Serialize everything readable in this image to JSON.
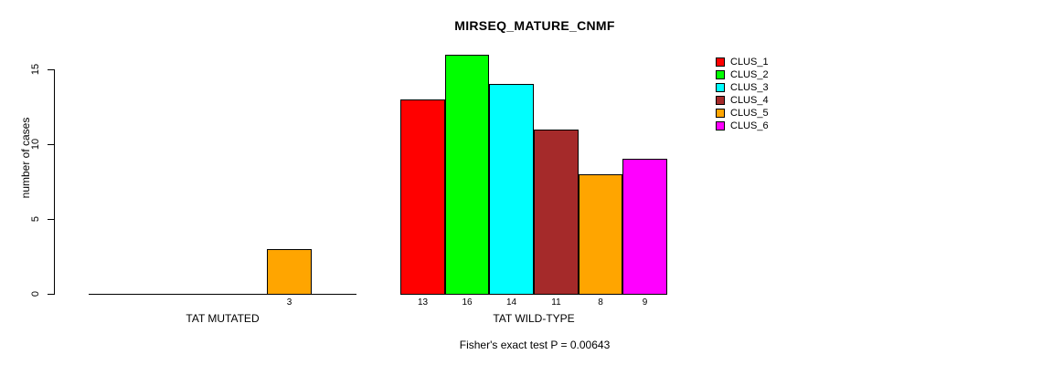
{
  "chart_data": {
    "type": "bar",
    "title": "MIRSEQ_MATURE_CNMF",
    "ylabel": "number of cases",
    "xlabel": "",
    "ylim": [
      0,
      15
    ],
    "yticks": [
      0,
      5,
      10,
      15
    ],
    "grid": false,
    "legend_position": "right",
    "categories": [
      "TAT MUTATED",
      "TAT WILD-TYPE"
    ],
    "series": [
      {
        "name": "CLUS_1",
        "color": "#FF0000",
        "values": [
          0,
          13
        ]
      },
      {
        "name": "CLUS_2",
        "color": "#00FF00",
        "values": [
          0,
          16
        ]
      },
      {
        "name": "CLUS_3",
        "color": "#00FFFF",
        "values": [
          0,
          14
        ]
      },
      {
        "name": "CLUS_4",
        "color": "#A52A2A",
        "values": [
          0,
          11
        ]
      },
      {
        "name": "CLUS_5",
        "color": "#FFA500",
        "values": [
          3,
          8
        ]
      },
      {
        "name": "CLUS_6",
        "color": "#FF00FF",
        "values": [
          0,
          9
        ]
      }
    ],
    "bar_value_labels": {
      "shown_when_positive": true
    },
    "annotation": "Fisher's exact test P = 0.00643"
  },
  "colors": {
    "axis": "#000000",
    "background": "#FFFFFF",
    "text": "#000000"
  }
}
